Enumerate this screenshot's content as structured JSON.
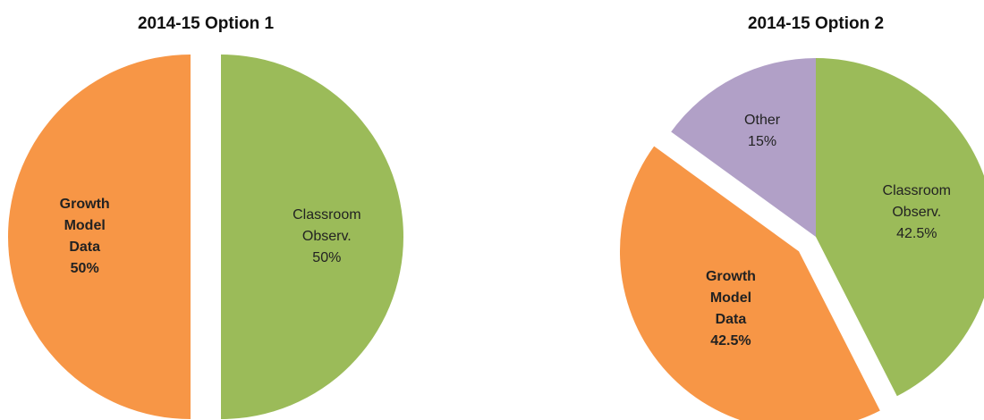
{
  "chart_data": [
    {
      "type": "pie",
      "title": "2014-15 Option 1",
      "categories": [
        "Classroom Observ.",
        "Growth Model Data"
      ],
      "values": [
        50,
        50
      ],
      "value_labels": [
        "50%",
        "50%"
      ],
      "colors": [
        "#9bbb59",
        "#f79646"
      ]
    },
    {
      "type": "pie",
      "title": "2014-15 Option 2",
      "categories": [
        "Classroom Observ.",
        "Growth Model Data",
        "Other"
      ],
      "values": [
        42.5,
        42.5,
        15
      ],
      "value_labels": [
        "42.5%",
        "42.5%",
        "15%"
      ],
      "colors": [
        "#9bbb59",
        "#f79646",
        "#b1a0c7"
      ]
    }
  ]
}
